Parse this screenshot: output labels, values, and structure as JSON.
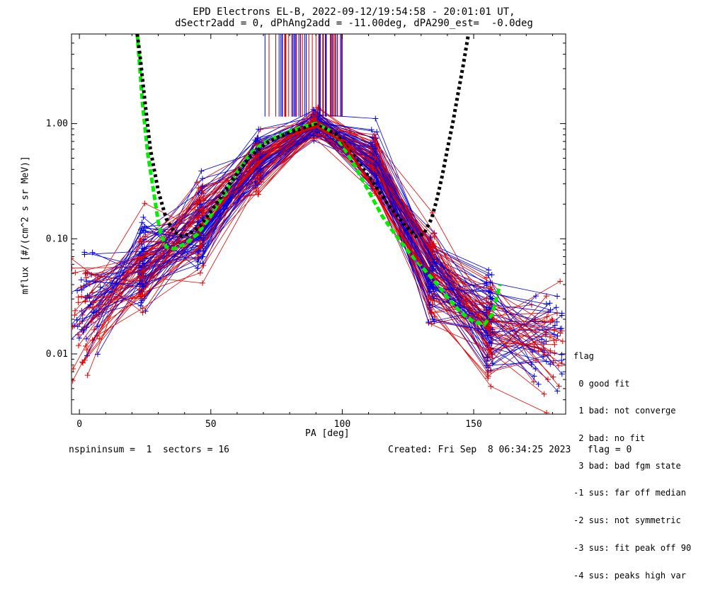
{
  "header": {
    "title_line1": "EPD Electrons EL-B, 2022-09-12/19:54:58 - 20:01:01 UT,",
    "title_line2": "dSectr2add = 0, dPhAng2add = -11.00deg, dPA290_est=  -0.0deg"
  },
  "footer": {
    "left": "nspininsum =  1  sectors = 16",
    "right": "Created: Fri Sep  8 06:34:25 2023   flag = 0"
  },
  "legend": {
    "title": "flag",
    "items": [
      " 0 good fit",
      " 1 bad: not converge",
      " 2 bad: no fit",
      " 3 bad: bad fgm state",
      "-1 sus: far off median",
      "-2 sus: not symmetric",
      "-3 sus: fit peak off 90",
      "-4 sus: peaks high var"
    ]
  },
  "colors": {
    "axes": "#000000",
    "red": "#e00000",
    "blue": "#0000e0",
    "green": "#00ee00",
    "black_fit": "#000000"
  },
  "chart_data": {
    "type": "line",
    "xlabel": "PA [deg]",
    "ylabel": "mflux [#/(cm^2 s sr MeV)]",
    "xlim": [
      -3,
      185
    ],
    "ylim": [
      0.003,
      6.0
    ],
    "yscale": "log",
    "x_ticks": [
      0,
      50,
      100,
      150
    ],
    "y_ticks": [
      {
        "value": 0.01,
        "label": "0.01"
      },
      {
        "value": 0.1,
        "label": "0.10"
      },
      {
        "value": 1.0,
        "label": "1.00"
      }
    ],
    "sector_pa": [
      2,
      24,
      46,
      68,
      90,
      112,
      134,
      156,
      178
    ],
    "median_profile": [
      0.025,
      0.06,
      0.13,
      0.45,
      1.0,
      0.45,
      0.05,
      0.018,
      0.012
    ],
    "peak_marks": {
      "color_ratio": 0.5,
      "x_range": [
        70,
        100
      ],
      "y_range": [
        1.15,
        6.0
      ]
    },
    "fit_curves": [
      {
        "name": "green",
        "points": [
          [
            22,
            6.0
          ],
          [
            23,
            3.0
          ],
          [
            24,
            1.5
          ],
          [
            26,
            0.55
          ],
          [
            28,
            0.28
          ],
          [
            30,
            0.14
          ],
          [
            31,
            0.11
          ],
          [
            33,
            0.085
          ],
          [
            36,
            0.082
          ],
          [
            40,
            0.09
          ],
          [
            45,
            0.11
          ],
          [
            50,
            0.16
          ],
          [
            55,
            0.24
          ],
          [
            60,
            0.38
          ],
          [
            65,
            0.55
          ],
          [
            70,
            0.68
          ],
          [
            75,
            0.77
          ],
          [
            80,
            0.86
          ],
          [
            85,
            0.94
          ],
          [
            90,
            1.0
          ],
          [
            95,
            0.88
          ],
          [
            100,
            0.65
          ],
          [
            105,
            0.42
          ],
          [
            110,
            0.26
          ],
          [
            115,
            0.16
          ],
          [
            120,
            0.11
          ],
          [
            125,
            0.078
          ],
          [
            130,
            0.058
          ],
          [
            135,
            0.043
          ],
          [
            140,
            0.031
          ],
          [
            145,
            0.023
          ],
          [
            150,
            0.019
          ],
          [
            154,
            0.018
          ],
          [
            157,
            0.022
          ],
          [
            160,
            0.04
          ]
        ]
      },
      {
        "name": "black",
        "points": [
          [
            22,
            6.0
          ],
          [
            23,
            4.0
          ],
          [
            25,
            1.5
          ],
          [
            27,
            0.6
          ],
          [
            30,
            0.26
          ],
          [
            33,
            0.15
          ],
          [
            36,
            0.115
          ],
          [
            39,
            0.105
          ],
          [
            42,
            0.11
          ],
          [
            46,
            0.13
          ],
          [
            52,
            0.2
          ],
          [
            58,
            0.32
          ],
          [
            65,
            0.52
          ],
          [
            72,
            0.7
          ],
          [
            80,
            0.84
          ],
          [
            90,
            0.98
          ],
          [
            98,
            0.8
          ],
          [
            105,
            0.5
          ],
          [
            112,
            0.3
          ],
          [
            118,
            0.19
          ],
          [
            124,
            0.13
          ],
          [
            128,
            0.105
          ],
          [
            131,
            0.11
          ],
          [
            134,
            0.15
          ],
          [
            136,
            0.22
          ],
          [
            138,
            0.35
          ],
          [
            140,
            0.6
          ],
          [
            142,
            1.0
          ],
          [
            144,
            1.8
          ],
          [
            146,
            3.2
          ],
          [
            148,
            6.0
          ]
        ]
      },
      {
        "name": "red-core",
        "points": [
          [
            60,
            0.28
          ],
          [
            70,
            0.5
          ],
          [
            80,
            0.78
          ],
          [
            90,
            0.95
          ],
          [
            100,
            0.7
          ],
          [
            110,
            0.32
          ],
          [
            120,
            0.13
          ],
          [
            130,
            0.06
          ]
        ]
      }
    ]
  }
}
